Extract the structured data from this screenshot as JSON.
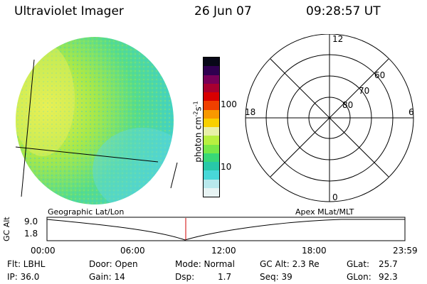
{
  "header": {
    "title": "Ultraviolet Imager",
    "date": "26 Jun 07",
    "time": "09:28:57 UT"
  },
  "colorbar": {
    "axis_label": "photon cm",
    "sup1": "-2",
    "mid": "s",
    "sup2": "-1",
    "ticks": [
      "100",
      "10"
    ],
    "scale": "log",
    "colors": [
      "#e8f4f4",
      "#b8e8ec",
      "#48d8d8",
      "#28c8a8",
      "#38d878",
      "#78e848",
      "#b8f040",
      "#e8f0a8",
      "#f8d000",
      "#f89800",
      "#f04000",
      "#d80000",
      "#a80030",
      "#780058",
      "#300050",
      "#080818"
    ]
  },
  "polar": {
    "mlt_labels": [
      "12",
      "18",
      "6",
      "0"
    ],
    "lat_labels": [
      "60",
      "70",
      "80"
    ]
  },
  "timeline": {
    "left_label": "Geographic Lat/Lon",
    "right_label": "Apex MLat/MLT",
    "axis_title": "GC Alt",
    "y_ticks": [
      "9.0",
      "1.8"
    ],
    "x_ticks": [
      "00:00",
      "06:00",
      "12:00",
      "18:00",
      "23:59"
    ],
    "marker_time": "09:28:57"
  },
  "status": {
    "filter": "Flt: LBHL",
    "ip": "IP: 36.0",
    "door": "Door: Open",
    "gain": "Gain: 14",
    "mode": "Mode: Normal",
    "dsp_label": "Dsp:",
    "dsp_value": "1.7",
    "gc_alt": "GC Alt: 2.3 Re",
    "seq": "Seq: 39",
    "glat_label": "GLat:",
    "glat_value": "25.7",
    "glon_label": "GLon:",
    "glon_value": "92.3"
  }
}
